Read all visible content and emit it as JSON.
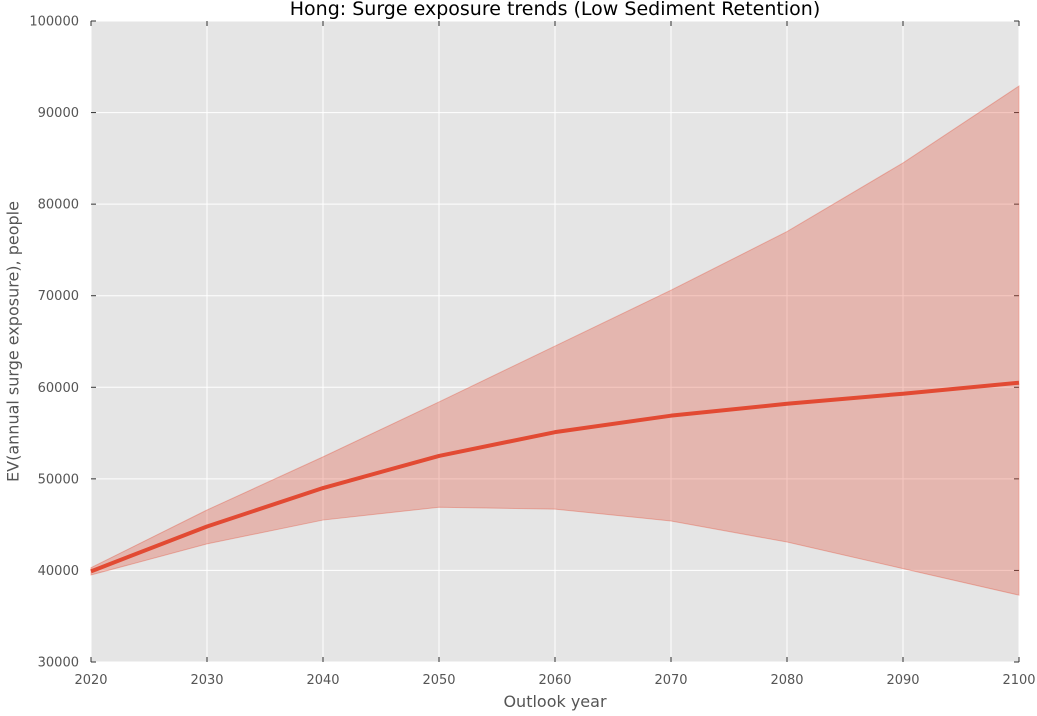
{
  "colors": {
    "plot_background": "#e5e5e5",
    "grid": "#ffffff",
    "line": "#e24a33",
    "band_fill": "#e24a33",
    "band_opacity": 0.3,
    "tick_text": "#555555",
    "title_text": "#000000"
  },
  "chart_data": {
    "type": "line",
    "title": "Hong: Surge exposure trends (Low Sediment Retention)",
    "xlabel": "Outlook year",
    "ylabel": "EV(annual surge exposure), people",
    "xlim": [
      2020,
      2100
    ],
    "ylim": [
      30000,
      100000
    ],
    "grid": true,
    "x_ticks": [
      "2020",
      "2030",
      "2040",
      "2050",
      "2060",
      "2070",
      "2080",
      "2090",
      "2100"
    ],
    "y_ticks": [
      "30000",
      "40000",
      "50000",
      "60000",
      "70000",
      "80000",
      "90000",
      "100000"
    ],
    "x": [
      2020,
      2030,
      2040,
      2050,
      2060,
      2070,
      2080,
      2090,
      2100
    ],
    "series": [
      {
        "values": [
          39900,
          44800,
          49000,
          52500,
          55100,
          56900,
          58200,
          59300,
          60500
        ]
      }
    ],
    "band": {
      "lower": [
        39500,
        42900,
        45500,
        46900,
        46700,
        45400,
        43100,
        40200,
        37300
      ],
      "upper": [
        40300,
        46600,
        52400,
        58400,
        64500,
        70600,
        77000,
        84500,
        92900
      ]
    }
  }
}
